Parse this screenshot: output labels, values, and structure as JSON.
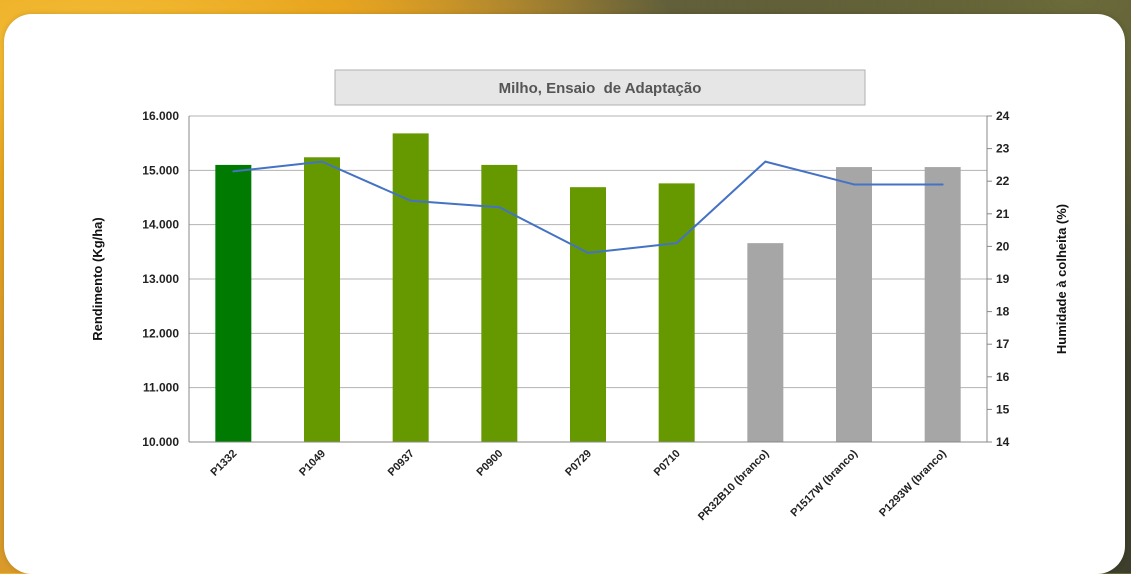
{
  "chart_data": {
    "type": "bar",
    "title": "Milho, Ensaio  de Adaptação",
    "categories": [
      "P1332",
      "P1049",
      "P0937",
      "P0900",
      "P0729",
      "P0710",
      "PR32B10 (branco)",
      "P1517W (branco)",
      "P1293W (branco)"
    ],
    "series": [
      {
        "type": "bar",
        "axis": "left",
        "values": [
          15100,
          15240,
          15680,
          15100,
          14690,
          14760,
          13660,
          15060,
          15060
        ],
        "colors": [
          "#007a00",
          "#669900",
          "#669900",
          "#669900",
          "#669900",
          "#669900",
          "#a6a6a6",
          "#a6a6a6",
          "#a6a6a6"
        ]
      },
      {
        "type": "line",
        "axis": "right",
        "values": [
          22.3,
          22.6,
          21.4,
          21.2,
          19.8,
          20.1,
          22.6,
          21.9,
          21.9
        ],
        "color": "#4472c4"
      }
    ],
    "ylabel": "Rendimento (Kg/ha)",
    "y2label": "Humidade à colheita (%)",
    "ylim": [
      10000,
      16000
    ],
    "y2lim": [
      14,
      24
    ],
    "yticks": [
      "10.000",
      "11.000",
      "12.000",
      "13.000",
      "14.000",
      "15.000",
      "16.000"
    ],
    "y2ticks": [
      "14",
      "15",
      "16",
      "17",
      "18",
      "19",
      "20",
      "21",
      "22",
      "23",
      "24"
    ],
    "grid": true,
    "legend": "none"
  }
}
